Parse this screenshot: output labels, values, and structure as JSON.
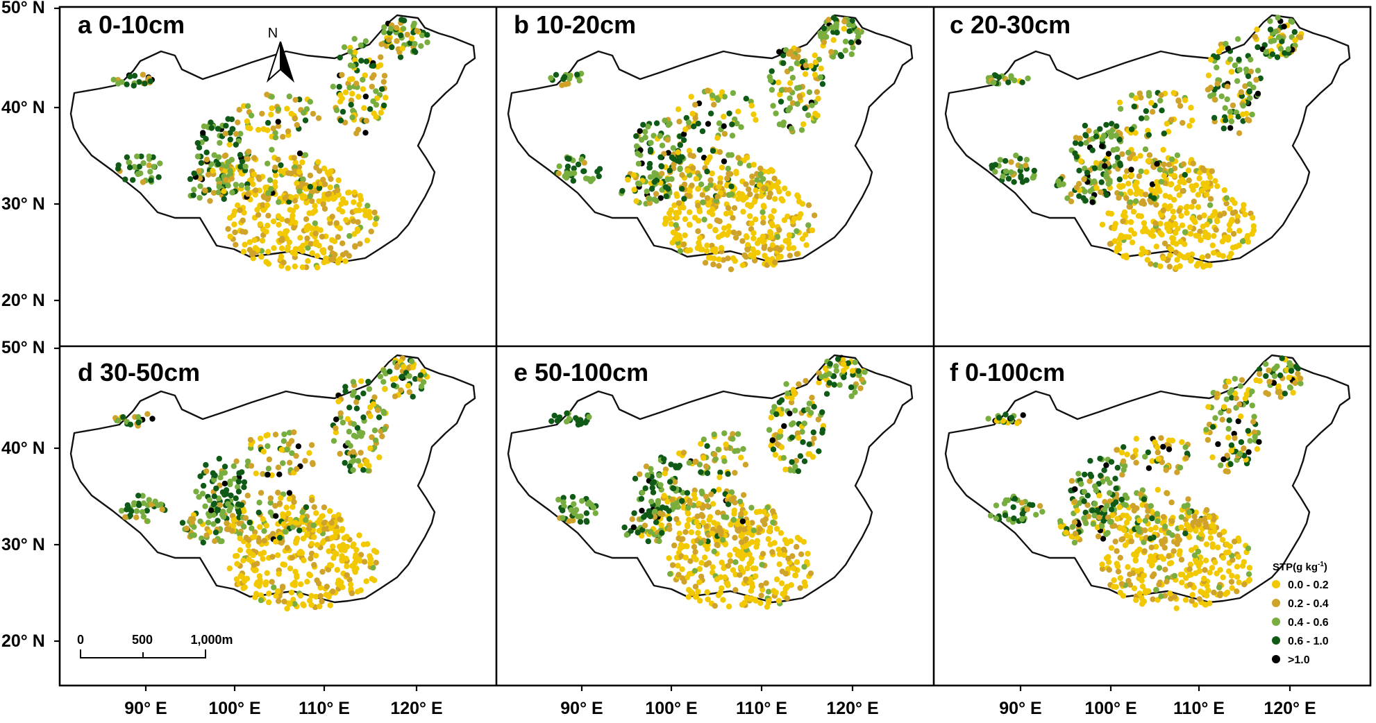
{
  "panels": [
    {
      "title": "a 0-10cm"
    },
    {
      "title": "b 10-20cm"
    },
    {
      "title": "c 20-30cm"
    },
    {
      "title": "d 30-50cm"
    },
    {
      "title": "e 50-100cm"
    },
    {
      "title": "f 0-100cm"
    }
  ],
  "axes": {
    "lat_labels": [
      "50° N",
      "40° N",
      "30° N",
      "20° N"
    ],
    "lon_labels": [
      "90° E",
      "100° E",
      "110° E",
      "120° E"
    ]
  },
  "legend": {
    "title": "STP(g kg",
    "title_sup": "-1",
    "title_close": ")",
    "classes": [
      {
        "label": "0.0 - 0.2",
        "color": "#f2c900"
      },
      {
        "label": "0.2 - 0.4",
        "color": "#cfa22a"
      },
      {
        "label": "0.4 - 0.6",
        "color": "#78ad3f"
      },
      {
        "label": "0.6 - 1.0",
        "color": "#0f5a16"
      },
      {
        "label": ">1.0",
        "color": "#000000"
      }
    ]
  },
  "scale_bar": {
    "labels": [
      "0",
      "500",
      "1,000m"
    ]
  },
  "north_arrow": {
    "label": "N"
  },
  "colors": {
    "outline": "#111111",
    "frame": "#000000"
  }
}
